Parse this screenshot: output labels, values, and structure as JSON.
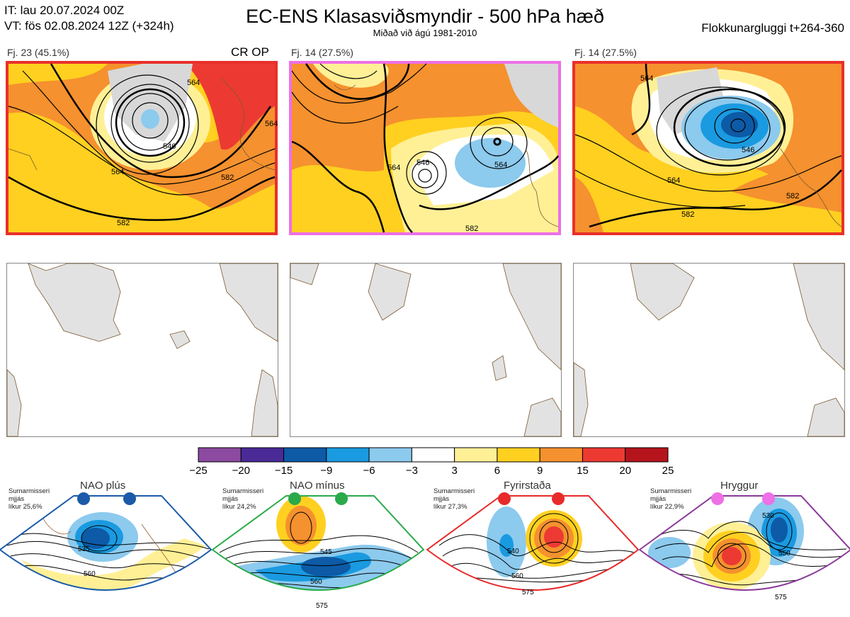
{
  "header": {
    "it_line": "IT: lau 20.07.2024 00Z",
    "vt_line": "VT: fös 02.08.2024 12Z  (+324h)",
    "title": "EC-ENS Klasasviðsmyndir - 500 hPa hæð",
    "subtitle": "Miðað við ágú 1981-2010",
    "window": "Flokkunargluggi t+264-360"
  },
  "panels": [
    {
      "label": "Fj. 23 (45.1%)",
      "op": "CR OP",
      "border": "#e8302a",
      "contours": [
        "564",
        "546",
        "564",
        "582",
        "582",
        "564"
      ]
    },
    {
      "label": "Fj. 14 (27.5%)",
      "op": "",
      "border": "#ee6fe6",
      "contours": [
        "546",
        "564",
        "564",
        "582"
      ]
    },
    {
      "label": "Fj. 14 (27.5%)",
      "op": "",
      "border": "#e8302a",
      "contours": [
        "564",
        "546",
        "564",
        "582",
        "582"
      ]
    }
  ],
  "colorbar": {
    "ticks": [
      "−25",
      "−20",
      "−15",
      "−9",
      "−6",
      "−3",
      "3",
      "6",
      "9",
      "15",
      "20",
      "25"
    ],
    "colors": [
      "#8c4aa0",
      "#4a2a96",
      "#0d5aa6",
      "#1a9ae0",
      "#8ccaee",
      "#ffffff",
      "#fff096",
      "#ffd020",
      "#f5912e",
      "#ec3a32",
      "#b5141c"
    ]
  },
  "regimes": [
    {
      "name": "NAO plús",
      "note": [
        "Sumarmisseri",
        "mjjás",
        "líkur 25,6%"
      ],
      "color": "#1a5aa8",
      "contours": [
        "535",
        "560"
      ]
    },
    {
      "name": "NAO mínus",
      "note": [
        "Sumarmisseri",
        "mjjás",
        "líkur 24,2%"
      ],
      "color": "#2aaa4a",
      "contours": [
        "545",
        "560",
        "575"
      ]
    },
    {
      "name": "Fyrirstaða",
      "note": [
        "Sumarmisseri",
        "mjjás",
        "líkur 27,3%"
      ],
      "color": "#e82a2a",
      "contours": [
        "540",
        "560",
        "575"
      ]
    },
    {
      "name": "Hryggur",
      "note": [
        "Sumarmisseri",
        "mjjás",
        "líkur 22,9%"
      ],
      "color": "#ee6fe6",
      "contours": [
        "530",
        "550",
        "575"
      ]
    }
  ]
}
